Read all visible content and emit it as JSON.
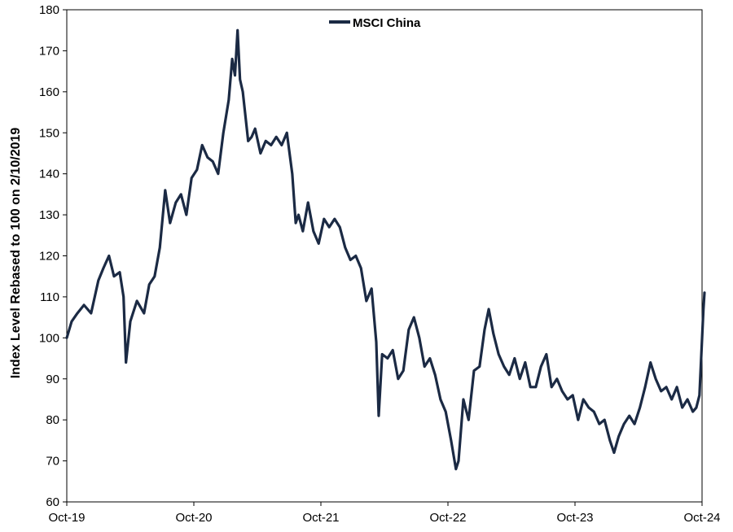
{
  "chart_data": {
    "type": "line",
    "title": "",
    "xlabel": "",
    "ylabel": "Index Level Rebased to 100 on 2/10/2019",
    "ylim": [
      60,
      180
    ],
    "yticks": [
      "60",
      "70",
      "80",
      "90",
      "100",
      "110",
      "120",
      "130",
      "140",
      "150",
      "160",
      "170",
      "180"
    ],
    "xlim": [
      "2019-10",
      "2024-10"
    ],
    "xticks": [
      "Oct-19",
      "Oct-20",
      "Oct-21",
      "Oct-22",
      "Oct-23",
      "Oct-24"
    ],
    "grid": false,
    "legend": "top-center",
    "line_color": "#1b2a44",
    "series": [
      {
        "name": "MSCI China",
        "x": [
          "2019-10-01",
          "2019-10-15",
          "2019-11-01",
          "2019-11-20",
          "2019-12-10",
          "2019-12-31",
          "2020-01-15",
          "2020-01-31",
          "2020-02-15",
          "2020-03-01",
          "2020-03-12",
          "2020-03-19",
          "2020-04-01",
          "2020-04-20",
          "2020-05-10",
          "2020-05-25",
          "2020-06-10",
          "2020-06-25",
          "2020-07-10",
          "2020-07-24",
          "2020-08-10",
          "2020-08-25",
          "2020-09-10",
          "2020-09-25",
          "2020-10-10",
          "2020-10-25",
          "2020-11-10",
          "2020-11-25",
          "2020-12-10",
          "2020-12-25",
          "2021-01-10",
          "2021-01-20",
          "2021-01-28",
          "2021-02-05",
          "2021-02-12",
          "2021-02-20",
          "2021-03-05",
          "2021-03-15",
          "2021-03-25",
          "2021-04-10",
          "2021-04-25",
          "2021-05-10",
          "2021-05-25",
          "2021-06-10",
          "2021-06-25",
          "2021-07-10",
          "2021-07-20",
          "2021-07-28",
          "2021-08-10",
          "2021-08-25",
          "2021-09-10",
          "2021-09-25",
          "2021-10-10",
          "2021-10-25",
          "2021-11-10",
          "2021-11-25",
          "2021-12-10",
          "2021-12-25",
          "2022-01-10",
          "2022-01-25",
          "2022-02-10",
          "2022-02-25",
          "2022-03-08",
          "2022-03-15",
          "2022-03-25",
          "2022-04-10",
          "2022-04-25",
          "2022-05-10",
          "2022-05-25",
          "2022-06-10",
          "2022-06-25",
          "2022-07-10",
          "2022-07-25",
          "2022-08-10",
          "2022-08-25",
          "2022-09-10",
          "2022-09-25",
          "2022-10-10",
          "2022-10-24",
          "2022-11-01",
          "2022-11-15",
          "2022-11-30",
          "2022-12-15",
          "2022-12-31",
          "2023-01-15",
          "2023-01-27",
          "2023-02-10",
          "2023-02-25",
          "2023-03-10",
          "2023-03-25",
          "2023-04-10",
          "2023-04-25",
          "2023-05-10",
          "2023-05-25",
          "2023-06-10",
          "2023-06-25",
          "2023-07-10",
          "2023-07-25",
          "2023-08-10",
          "2023-08-25",
          "2023-09-10",
          "2023-09-25",
          "2023-10-10",
          "2023-10-25",
          "2023-11-10",
          "2023-11-25",
          "2023-12-10",
          "2023-12-25",
          "2024-01-10",
          "2024-01-22",
          "2024-02-05",
          "2024-02-20",
          "2024-03-05",
          "2024-03-20",
          "2024-04-05",
          "2024-04-20",
          "2024-05-05",
          "2024-05-20",
          "2024-06-05",
          "2024-06-20",
          "2024-07-05",
          "2024-07-20",
          "2024-08-05",
          "2024-08-20",
          "2024-09-05",
          "2024-09-15",
          "2024-09-24",
          "2024-09-30",
          "2024-10-05",
          "2024-10-08"
        ],
        "values": [
          100,
          104,
          106,
          108,
          106,
          114,
          117,
          120,
          115,
          116,
          110,
          94,
          104,
          109,
          106,
          113,
          115,
          122,
          136,
          128,
          133,
          135,
          130,
          139,
          141,
          147,
          144,
          143,
          140,
          150,
          158,
          168,
          164,
          175,
          163,
          160,
          148,
          149,
          151,
          145,
          148,
          147,
          149,
          147,
          150,
          140,
          128,
          130,
          126,
          133,
          126,
          123,
          129,
          127,
          129,
          127,
          122,
          119,
          120,
          117,
          109,
          112,
          99,
          81,
          96,
          95,
          97,
          90,
          92,
          102,
          105,
          100,
          93,
          95,
          91,
          85,
          82,
          75,
          68,
          70,
          85,
          80,
          92,
          93,
          102,
          107,
          101,
          96,
          93,
          91,
          95,
          90,
          94,
          88,
          88,
          93,
          96,
          88,
          90,
          87,
          85,
          86,
          80,
          85,
          83,
          82,
          79,
          80,
          75,
          72,
          76,
          79,
          81,
          79,
          83,
          88,
          94,
          90,
          87,
          88,
          85,
          88,
          83,
          85,
          82,
          83,
          86,
          97,
          107,
          111
        ]
      }
    ]
  }
}
